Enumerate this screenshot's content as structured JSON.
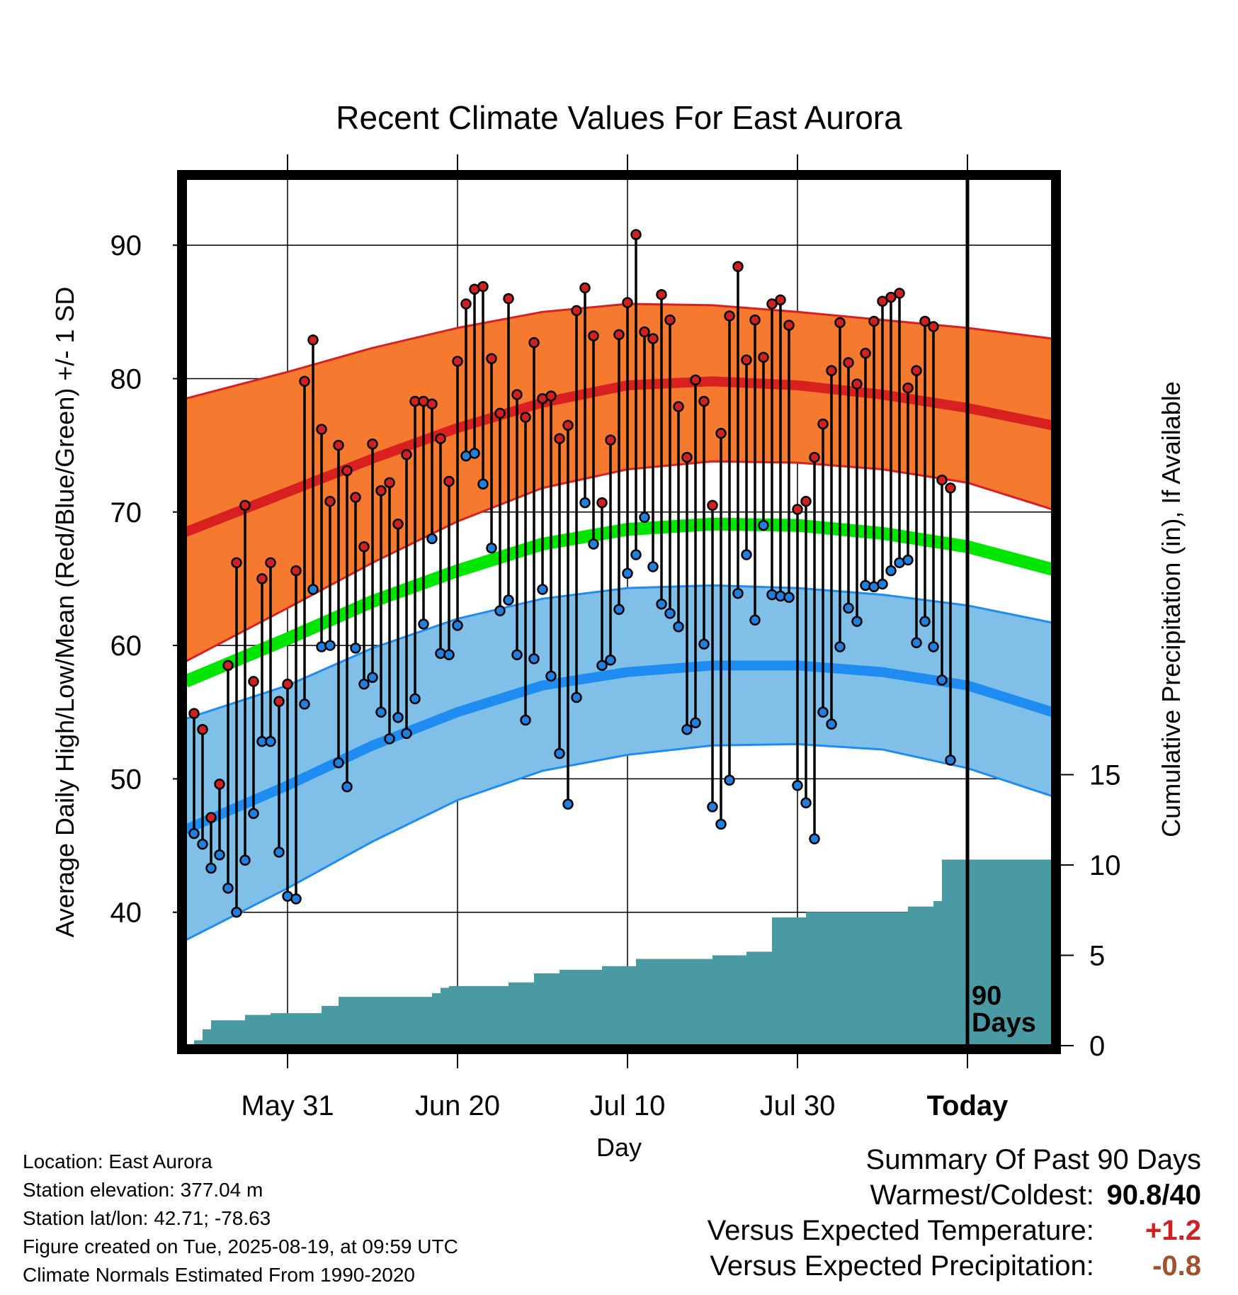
{
  "chart_data": {
    "type": "line",
    "title": "Recent Climate Values For East Aurora",
    "xlabel": "Day",
    "ylabel": "Average Daily High/Low/Mean (Red/Blue/Green) +/- 1 SD",
    "y2label": "Cumulative Precipitation (in), If Available",
    "start_date": "2025-05-20",
    "xlim": [
      "2025-05-19",
      "2025-08-29"
    ],
    "ylim": [
      30,
      95
    ],
    "y2lim": [
      0,
      48
    ],
    "x_ticks": [
      {
        "label": "May 31",
        "date": "2025-05-31"
      },
      {
        "label": "Jun 20",
        "date": "2025-06-20"
      },
      {
        "label": "Jul 10",
        "date": "2025-07-10"
      },
      {
        "label": "Jul 30",
        "date": "2025-07-30"
      },
      {
        "label": "Today",
        "date": "2025-08-19"
      }
    ],
    "y_ticks": [
      40,
      50,
      60,
      70,
      80,
      90
    ],
    "y2_ticks": [
      0,
      5,
      10,
      15
    ],
    "today": "2025-08-19",
    "today_label_1": "90",
    "today_label_2": "Days",
    "normals": {
      "x": [
        "2025-05-19",
        "2025-05-31",
        "2025-06-10",
        "2025-06-20",
        "2025-06-30",
        "2025-07-10",
        "2025-07-20",
        "2025-07-30",
        "2025-08-09",
        "2025-08-19",
        "2025-08-29"
      ],
      "high_mean": [
        68.5,
        71.5,
        74.0,
        76.3,
        78.2,
        79.5,
        79.8,
        79.5,
        78.8,
        77.8,
        76.5
      ],
      "high_upper": [
        78.5,
        80.5,
        82.3,
        83.8,
        85.0,
        85.6,
        85.5,
        85.0,
        84.4,
        83.8,
        83.0
      ],
      "high_lower": [
        58.8,
        62.8,
        66.2,
        69.3,
        71.8,
        73.2,
        73.8,
        73.7,
        73.2,
        72.2,
        70.2
      ],
      "low_mean": [
        46.2,
        49.5,
        52.5,
        55.0,
        57.0,
        58.0,
        58.5,
        58.5,
        58.0,
        57.0,
        55.0
      ],
      "low_upper": [
        54.5,
        57.0,
        59.8,
        62.0,
        63.5,
        64.3,
        64.5,
        64.3,
        63.8,
        63.0,
        61.7
      ],
      "low_lower": [
        37.9,
        41.8,
        45.3,
        48.4,
        50.6,
        51.8,
        52.5,
        52.6,
        52.2,
        50.8,
        48.7
      ],
      "mean": [
        57.3,
        60.5,
        63.3,
        65.6,
        67.6,
        68.7,
        69.1,
        69.0,
        68.4,
        67.4,
        65.7
      ]
    },
    "daily": {
      "high": [
        54.9,
        53.7,
        47.1,
        49.6,
        58.5,
        66.2,
        70.5,
        57.3,
        65.0,
        66.2,
        55.8,
        57.1,
        65.6,
        79.8,
        82.9,
        76.2,
        70.8,
        75.0,
        73.1,
        71.1,
        67.4,
        75.1,
        71.6,
        72.2,
        69.1,
        74.3,
        78.3,
        78.3,
        78.1,
        75.5,
        72.3,
        81.3,
        85.6,
        86.7,
        86.9,
        81.5,
        77.4,
        86.0,
        78.8,
        77.1,
        82.7,
        78.5,
        78.7,
        75.5,
        76.5,
        85.1,
        86.8,
        83.2,
        70.7,
        75.4,
        83.3,
        85.7,
        90.8,
        83.5,
        83.0,
        86.3,
        84.4,
        77.9,
        74.1,
        79.9,
        78.3,
        70.5,
        75.9,
        84.7,
        88.4,
        81.4,
        84.4,
        81.6,
        85.6,
        85.9,
        84.0,
        70.2,
        70.8,
        74.1,
        76.6,
        80.6,
        84.2,
        81.2,
        79.6,
        81.9,
        84.3,
        85.8,
        86.1,
        86.4,
        79.3,
        80.6,
        84.3,
        83.9,
        72.4,
        71.8
      ],
      "low": [
        45.9,
        45.1,
        43.3,
        44.3,
        41.8,
        40.0,
        43.9,
        47.4,
        52.8,
        52.8,
        44.5,
        41.2,
        41.0,
        55.6,
        64.2,
        59.9,
        60.0,
        51.2,
        49.4,
        59.8,
        57.1,
        57.6,
        55.0,
        53.0,
        54.6,
        53.4,
        56.0,
        61.6,
        68.0,
        59.4,
        59.3,
        61.5,
        74.2,
        74.4,
        72.1,
        67.3,
        62.6,
        63.4,
        59.3,
        54.4,
        59.0,
        64.2,
        57.7,
        51.9,
        48.1,
        56.1,
        70.7,
        67.6,
        58.5,
        58.9,
        62.7,
        65.4,
        66.8,
        69.6,
        65.9,
        63.1,
        62.4,
        61.4,
        53.7,
        54.2,
        60.1,
        47.9,
        46.6,
        49.9,
        63.9,
        66.8,
        61.9,
        69.0,
        63.8,
        63.7,
        63.6,
        49.5,
        48.2,
        45.5,
        55.0,
        54.1,
        59.9,
        62.8,
        61.8,
        64.5,
        64.4,
        64.6,
        65.6,
        66.2,
        66.4,
        60.2,
        61.8,
        59.9,
        57.4,
        51.4
      ]
    },
    "precip_cumulative": [
      0.3,
      0.9,
      1.4,
      1.4,
      1.4,
      1.4,
      1.7,
      1.7,
      1.7,
      1.8,
      1.8,
      1.8,
      1.8,
      1.8,
      1.8,
      2.2,
      2.2,
      2.7,
      2.7,
      2.7,
      2.7,
      2.7,
      2.7,
      2.7,
      2.7,
      2.7,
      2.7,
      2.7,
      2.9,
      3.2,
      3.3,
      3.3,
      3.3,
      3.3,
      3.3,
      3.3,
      3.3,
      3.5,
      3.5,
      3.5,
      4.0,
      4.0,
      4.0,
      4.2,
      4.2,
      4.2,
      4.2,
      4.2,
      4.4,
      4.4,
      4.4,
      4.4,
      4.8,
      4.8,
      4.8,
      4.8,
      4.8,
      4.8,
      4.8,
      4.8,
      4.8,
      5.0,
      5.0,
      5.0,
      5.0,
      5.2,
      5.2,
      5.2,
      7.1,
      7.1,
      7.1,
      7.1,
      7.4,
      7.4,
      7.4,
      7.4,
      7.4,
      7.4,
      7.4,
      7.4,
      7.4,
      7.4,
      7.4,
      7.4,
      7.7,
      7.7,
      7.7,
      8.0,
      10.3,
      10.3
    ],
    "colors": {
      "high_band": "#f57a2f",
      "high_line": "#d82020",
      "low_band": "#80c0e8",
      "low_line": "#1e8cf0",
      "mean_line": "#00e600",
      "precip": "#4a9aa4",
      "high_marker": "#d02020",
      "low_marker": "#2080e0"
    }
  },
  "info": {
    "location": "Location: East Aurora",
    "elevation": "Station elevation: 377.04 m",
    "latlon": "Station lat/lon: 42.71; -78.63",
    "created": "Figure created on Tue, 2025-08-19, at 09:59 UTC",
    "normals": "Climate Normals Estimated From 1990-2020"
  },
  "summary": {
    "title": "Summary Of Past 90 Days",
    "warm_cold_label": "Warmest/Coldest:",
    "warm_cold_value": "90.8/40",
    "temp_label": "Versus Expected Temperature:",
    "temp_value": "+1.2",
    "temp_color": "#d02020",
    "precip_label": "Versus Expected Precipitation:",
    "precip_value": "-0.8",
    "precip_color": "#a0522d"
  }
}
